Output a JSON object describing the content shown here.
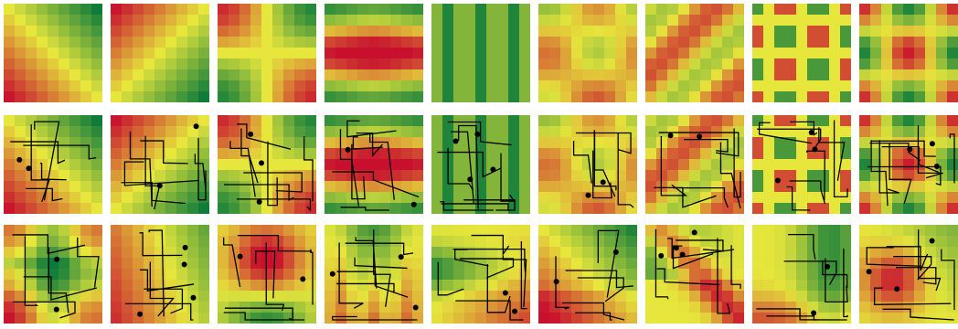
{
  "colors": {
    "background": "#ffffff",
    "low": "#c8102e",
    "mid": "#e6e63c",
    "high": "#0a7a3a",
    "wire": "#000000"
  },
  "grid": {
    "rows": 3,
    "cols": 9
  },
  "tiles": [
    {
      "row": 0,
      "col": 0,
      "pattern": "diag-green-top-right",
      "wires": false
    },
    {
      "row": 0,
      "col": 1,
      "pattern": "diag-red-top-left",
      "wires": false
    },
    {
      "row": 0,
      "col": 2,
      "pattern": "corners-green-red",
      "wires": false
    },
    {
      "row": 0,
      "col": 3,
      "pattern": "horizontal-red-band",
      "wires": false
    },
    {
      "row": 0,
      "col": 4,
      "pattern": "vertical-stripes",
      "wires": false
    },
    {
      "row": 0,
      "col": 5,
      "pattern": "soft-mix",
      "wires": false
    },
    {
      "row": 0,
      "col": 6,
      "pattern": "soft-diagonal",
      "wires": false
    },
    {
      "row": 0,
      "col": 7,
      "pattern": "checker-red-center",
      "wires": false
    },
    {
      "row": 0,
      "col": 8,
      "pattern": "checker-green",
      "wires": false
    },
    {
      "row": 1,
      "col": 0,
      "pattern": "diag-green-top-right",
      "wires": true
    },
    {
      "row": 1,
      "col": 1,
      "pattern": "diag-red-top-left",
      "wires": true
    },
    {
      "row": 1,
      "col": 2,
      "pattern": "corners-green-red",
      "wires": true
    },
    {
      "row": 1,
      "col": 3,
      "pattern": "horizontal-red-band",
      "wires": true
    },
    {
      "row": 1,
      "col": 4,
      "pattern": "vertical-stripes",
      "wires": true
    },
    {
      "row": 1,
      "col": 5,
      "pattern": "soft-mix",
      "wires": true
    },
    {
      "row": 1,
      "col": 6,
      "pattern": "soft-diagonal",
      "wires": true
    },
    {
      "row": 1,
      "col": 7,
      "pattern": "checker-red-center",
      "wires": true
    },
    {
      "row": 1,
      "col": 8,
      "pattern": "checker-green",
      "wires": true
    },
    {
      "row": 2,
      "col": 0,
      "pattern": "green-cross-center",
      "wires": true
    },
    {
      "row": 2,
      "col": 1,
      "pattern": "green-right",
      "wires": true
    },
    {
      "row": 2,
      "col": 2,
      "pattern": "red-blob-center",
      "wires": true
    },
    {
      "row": 2,
      "col": 3,
      "pattern": "green-top-stripes",
      "wires": true
    },
    {
      "row": 2,
      "col": 4,
      "pattern": "green-left-band",
      "wires": true
    },
    {
      "row": 2,
      "col": 5,
      "pattern": "green-top-right-diag",
      "wires": true
    },
    {
      "row": 2,
      "col": 6,
      "pattern": "diag-red-band",
      "wires": true
    },
    {
      "row": 2,
      "col": 7,
      "pattern": "green-right-red-bottom",
      "wires": true
    },
    {
      "row": 2,
      "col": 8,
      "pattern": "red-ring-left",
      "wires": true
    }
  ]
}
